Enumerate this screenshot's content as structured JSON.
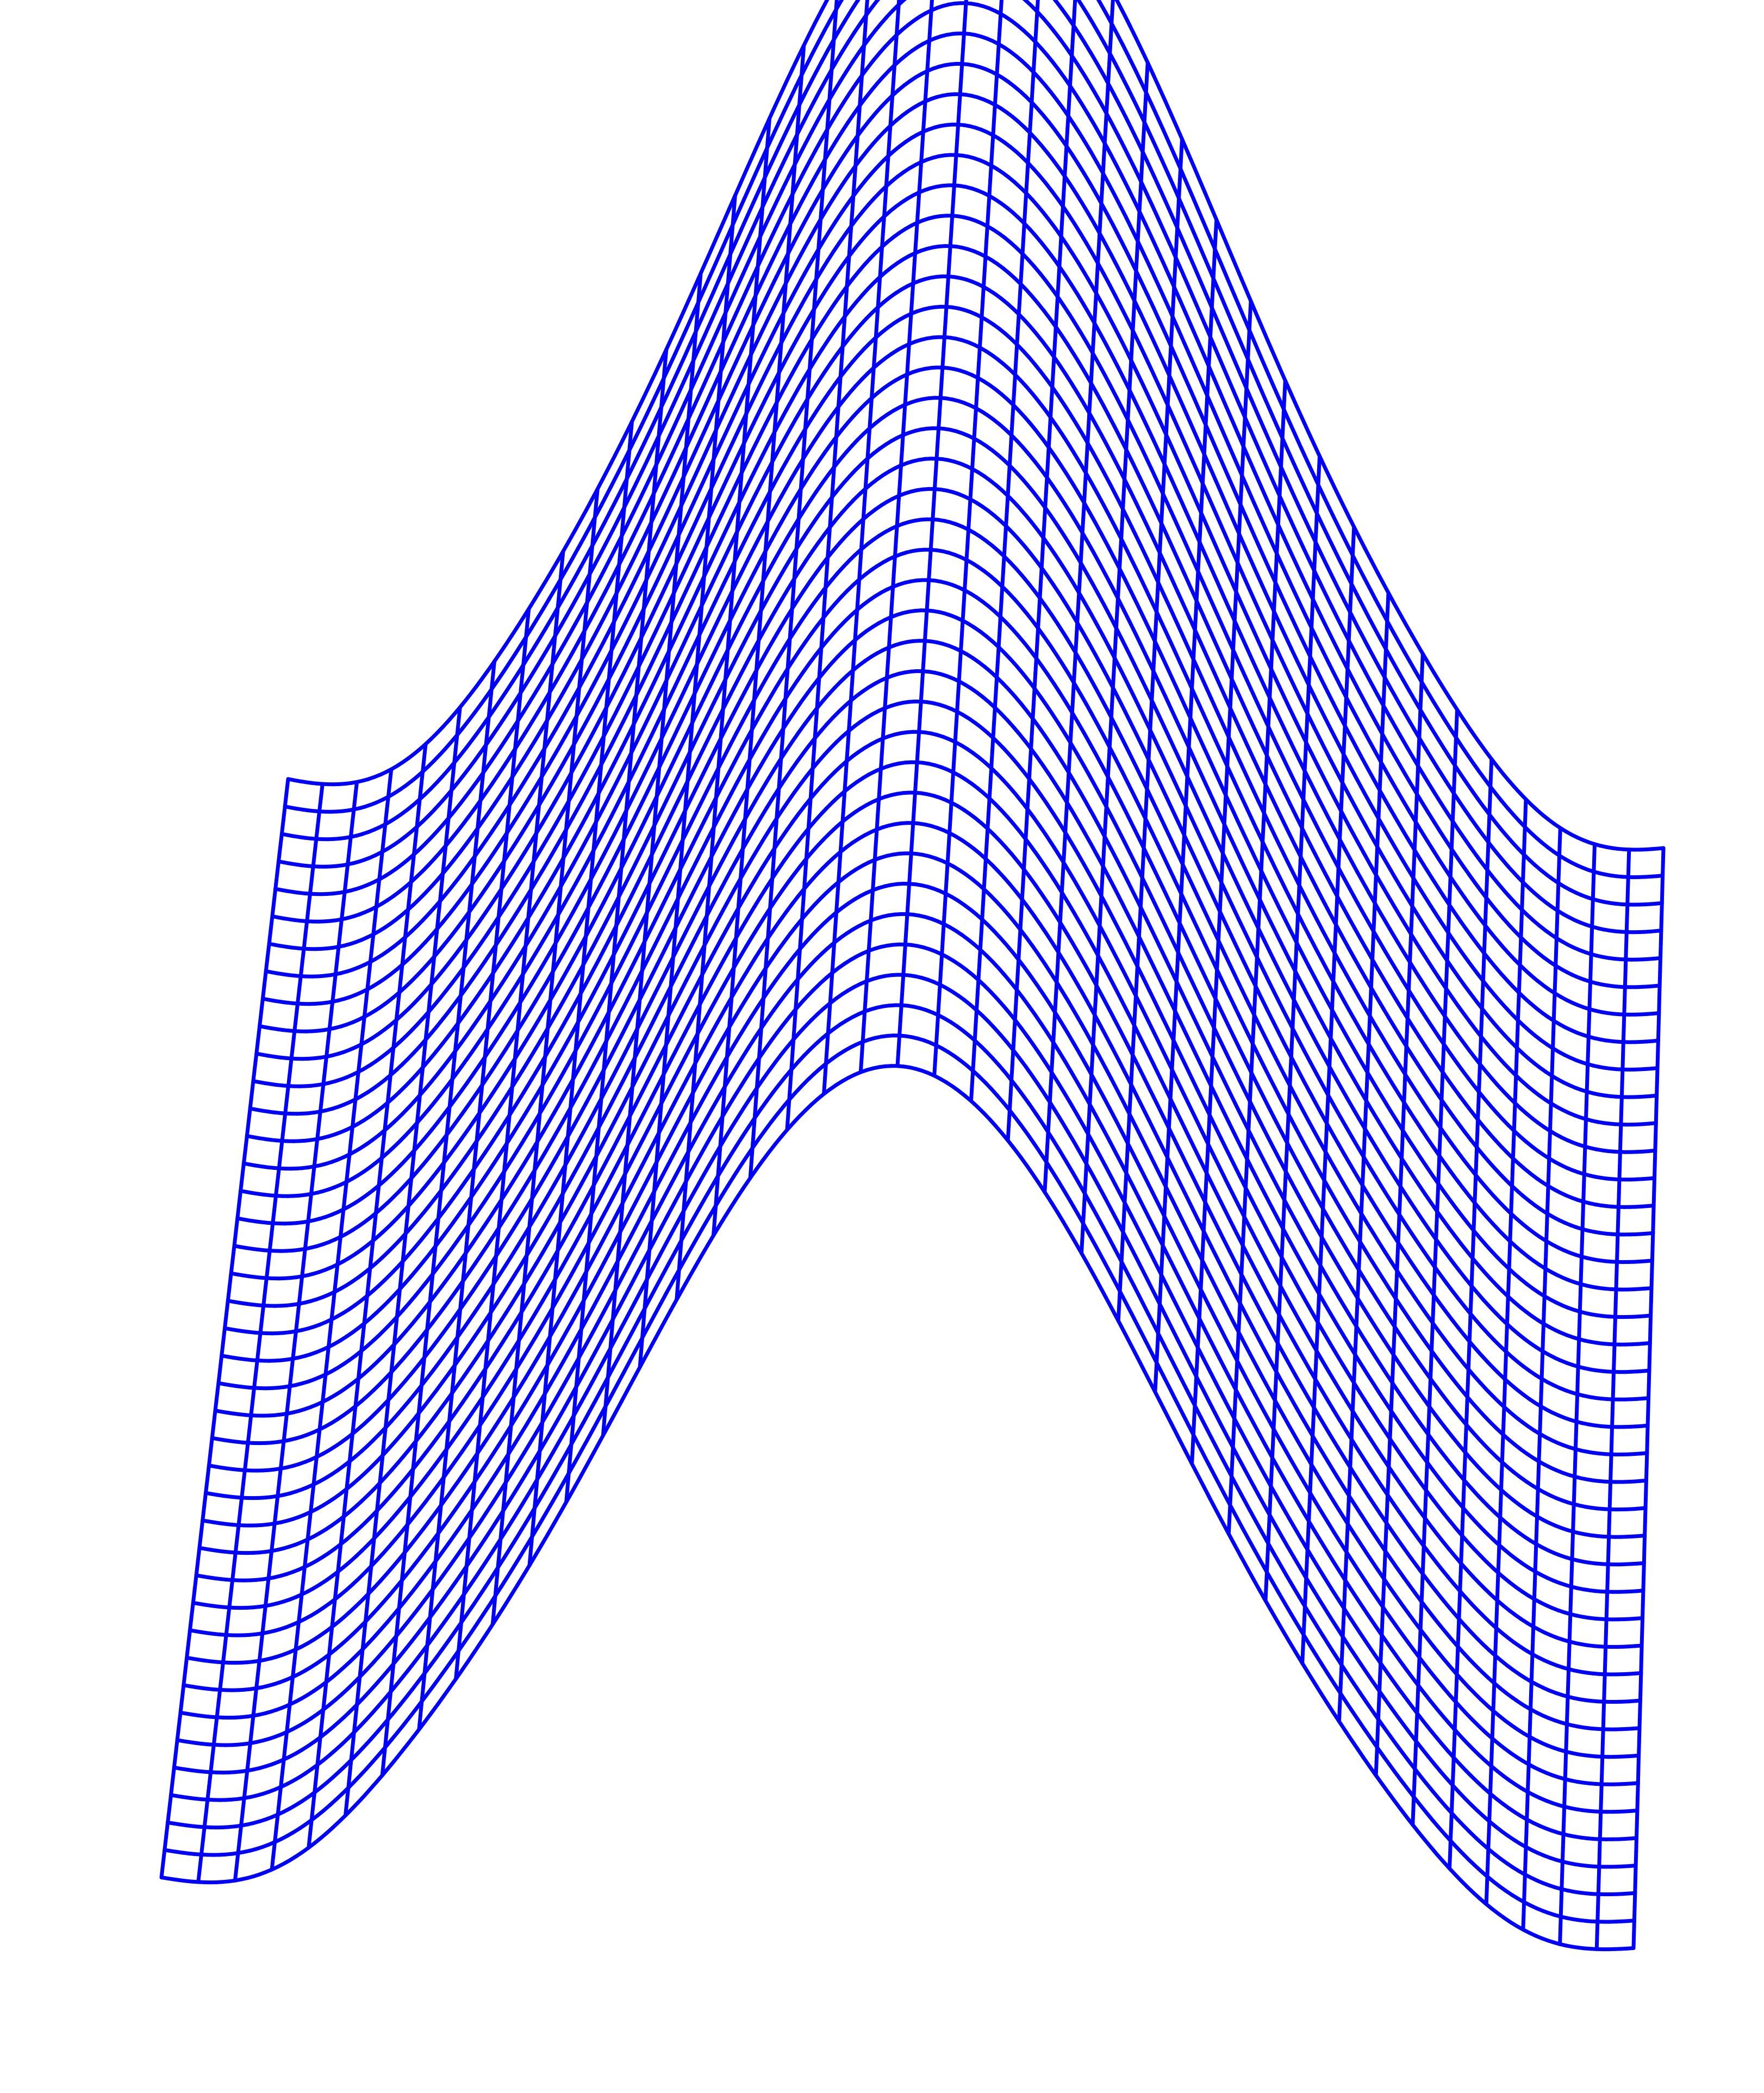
{
  "surface": {
    "kind": "wireframe-3d-surface",
    "shape": "ridge with a single peak along one axis",
    "line_color": "#0000FF",
    "background": "#FFFFFF",
    "rows": 40,
    "columns": 40
  }
}
